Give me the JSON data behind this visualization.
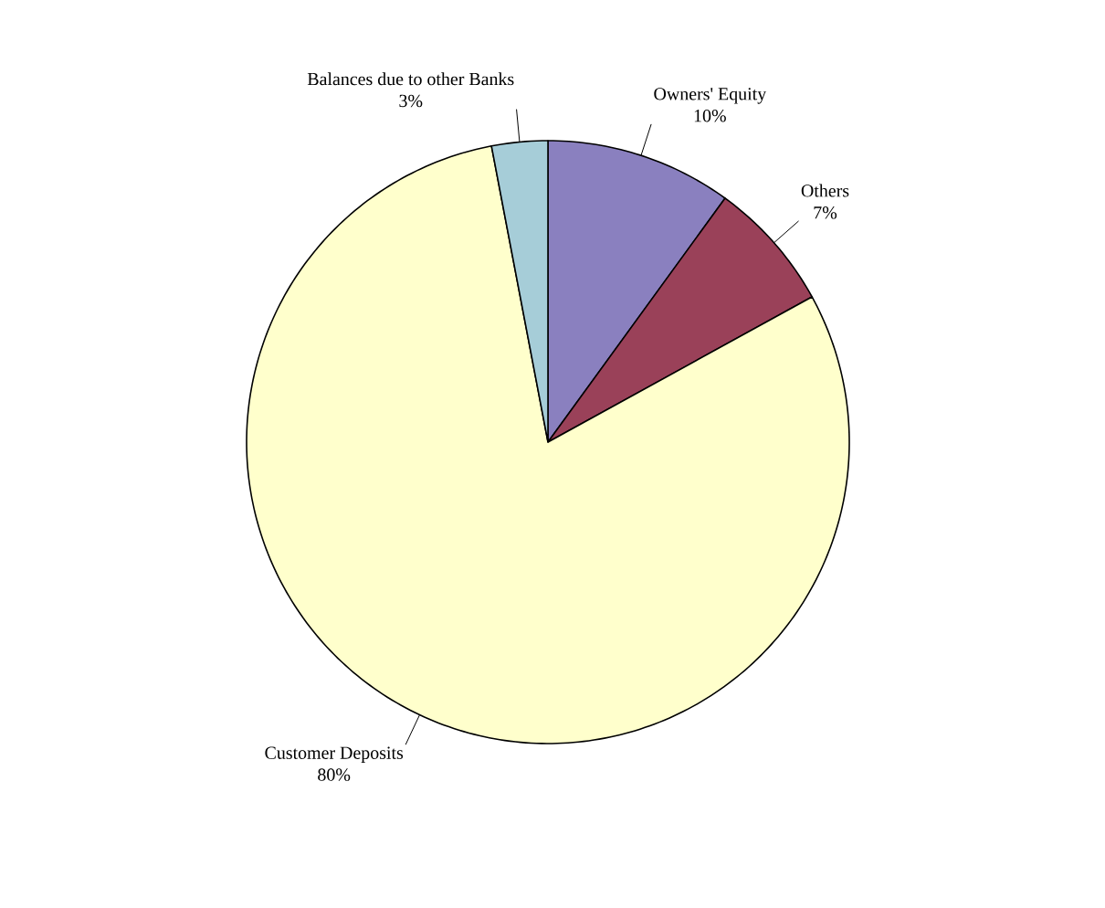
{
  "chart_data": {
    "type": "pie",
    "categories": [
      "Owners' Equity",
      "Others",
      "Customer Deposits",
      "Balances due to other Banks"
    ],
    "values": [
      10,
      7,
      80,
      3
    ],
    "value_labels": [
      "10%",
      "7%",
      "80%",
      "3%"
    ],
    "colors": [
      "#8a80bf",
      "#9a4159",
      "#ffffcc",
      "#a6cdd8"
    ],
    "legend": false
  }
}
